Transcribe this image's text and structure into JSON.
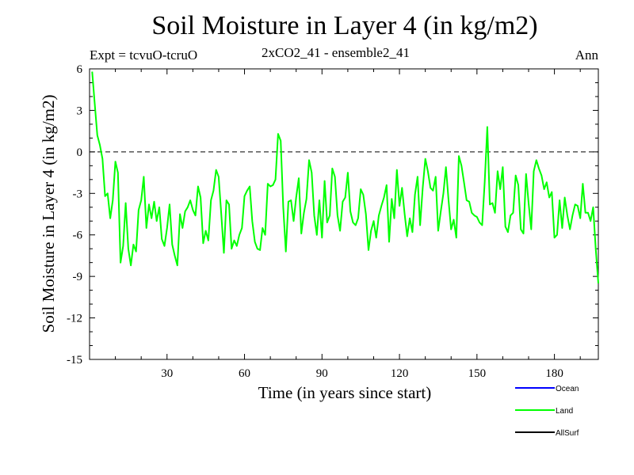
{
  "header": {
    "title": "Soil Moisture in Layer 4 (in kg/m2)",
    "expt": "Expt = tcvuO-tcruO",
    "run": "2xCO2_41 - ensemble2_41",
    "period": "Ann"
  },
  "chart_data": {
    "type": "line",
    "title": "Soil Moisture in Layer 4 (in kg/m2)",
    "xlabel": "Time (in years since start)",
    "ylabel": "Soil Moisture in Layer 4 (in kg/m2)",
    "xlim": [
      0,
      197
    ],
    "ylim": [
      -15,
      6
    ],
    "x_ticks": [
      30,
      60,
      90,
      120,
      150,
      180
    ],
    "y_ticks": [
      6,
      3,
      0,
      -3,
      -6,
      -9,
      -12,
      -15
    ],
    "zero_line": "dashed",
    "grid": false,
    "legend_position": "bottom-right",
    "legend": [
      {
        "name": "Ocean",
        "color": "#0000ff"
      },
      {
        "name": "Land",
        "color": "#00ff00"
      },
      {
        "name": "AllSurf",
        "color": "#000000"
      }
    ],
    "series": [
      {
        "name": "Land",
        "color": "#00ff00",
        "x_start": 1,
        "x_step": 1,
        "values": [
          5.8,
          3.5,
          1.2,
          0.5,
          -0.5,
          -3.2,
          -3.0,
          -4.8,
          -3.5,
          -0.7,
          -1.5,
          -8.0,
          -6.8,
          -3.7,
          -7.0,
          -8.2,
          -6.7,
          -7.2,
          -4.2,
          -3.5,
          -1.8,
          -5.5,
          -3.8,
          -4.8,
          -3.6,
          -5.0,
          -4.0,
          -6.3,
          -6.8,
          -5.5,
          -3.8,
          -6.7,
          -7.5,
          -8.2,
          -4.5,
          -5.5,
          -4.3,
          -4.0,
          -3.5,
          -4.2,
          -4.6,
          -2.5,
          -3.3,
          -6.6,
          -5.7,
          -6.4,
          -3.5,
          -2.8,
          -1.3,
          -1.8,
          -4.5,
          -7.3,
          -3.5,
          -3.8,
          -7.0,
          -6.4,
          -6.8,
          -6.0,
          -5.5,
          -3.2,
          -2.8,
          -2.5,
          -5.0,
          -6.5,
          -7.0,
          -7.1,
          -5.5,
          -6.0,
          -2.3,
          -2.5,
          -2.4,
          -2.0,
          1.3,
          0.8,
          -4.0,
          -7.2,
          -3.6,
          -3.5,
          -5.0,
          -3.3,
          -1.9,
          -5.9,
          -4.4,
          -3.4,
          -0.6,
          -1.5,
          -4.6,
          -6.0,
          -3.5,
          -6.2,
          -2.1,
          -5.1,
          -4.6,
          -1.2,
          -1.8,
          -4.6,
          -5.7,
          -3.6,
          -3.3,
          -1.5,
          -4.3,
          -5.1,
          -5.3,
          -4.8,
          -2.7,
          -3.1,
          -4.5,
          -7.1,
          -5.7,
          -5.0,
          -6.2,
          -4.6,
          -3.9,
          -3.3,
          -2.4,
          -6.5,
          -3.4,
          -4.8,
          -1.3,
          -3.9,
          -2.6,
          -4.5,
          -6.1,
          -4.8,
          -5.8,
          -3.1,
          -1.8,
          -5.3,
          -2.6,
          -0.5,
          -1.4,
          -2.6,
          -2.8,
          -1.8,
          -5.7,
          -4.3,
          -3.0,
          -1.1,
          -3.5,
          -5.6,
          -4.9,
          -6.2,
          -0.3,
          -1.0,
          -2.2,
          -3.5,
          -3.6,
          -4.4,
          -4.6,
          -4.7,
          -5.1,
          -5.3,
          -2.2,
          1.8,
          -3.8,
          -3.7,
          -4.4,
          -1.4,
          -2.7,
          -1.1,
          -5.4,
          -5.8,
          -4.6,
          -4.4,
          -1.7,
          -2.4,
          -5.6,
          -5.9,
          -1.6,
          -3.7,
          -5.6,
          -1.4,
          -0.6,
          -1.2,
          -1.7,
          -2.7,
          -2.2,
          -3.3,
          -2.9,
          -6.2,
          -6.0,
          -3.5,
          -5.5,
          -3.3,
          -4.6,
          -5.6,
          -4.6,
          -3.8,
          -3.9,
          -4.8,
          -2.3,
          -4.4,
          -4.4,
          -5.0,
          -4.0,
          -7.0,
          -9.5
        ]
      }
    ]
  }
}
